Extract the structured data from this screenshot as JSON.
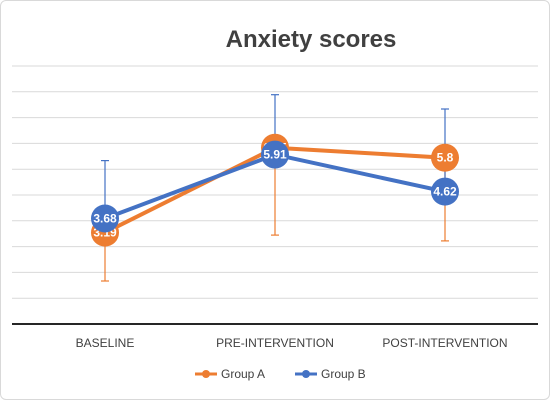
{
  "chart_data": {
    "type": "line",
    "title": "Anxiety scores",
    "categories": [
      "BASELINE",
      "PRE-INTERVENTION",
      "POST-INTERVENTION"
    ],
    "series": [
      {
        "name": "Group A",
        "color": "#ed7d31",
        "values": [
          3.19,
          6.15,
          5.8
        ],
        "labels": [
          "3.19",
          "6.15",
          "5.8"
        ],
        "error_upper": [
          3.19,
          6.15,
          5.8
        ],
        "error_lower": [
          1.5,
          3.1,
          2.9
        ]
      },
      {
        "name": "Group B",
        "color": "#4472c4",
        "values": [
          3.68,
          5.91,
          4.62
        ],
        "labels": [
          "3.68",
          "5.91",
          "4.62"
        ],
        "error_upper": [
          5.7,
          8.0,
          7.5
        ],
        "error_lower": [
          3.68,
          5.91,
          4.62
        ]
      }
    ],
    "ylim": [
      0,
      9
    ],
    "grid": true,
    "legend_position": "bottom"
  }
}
